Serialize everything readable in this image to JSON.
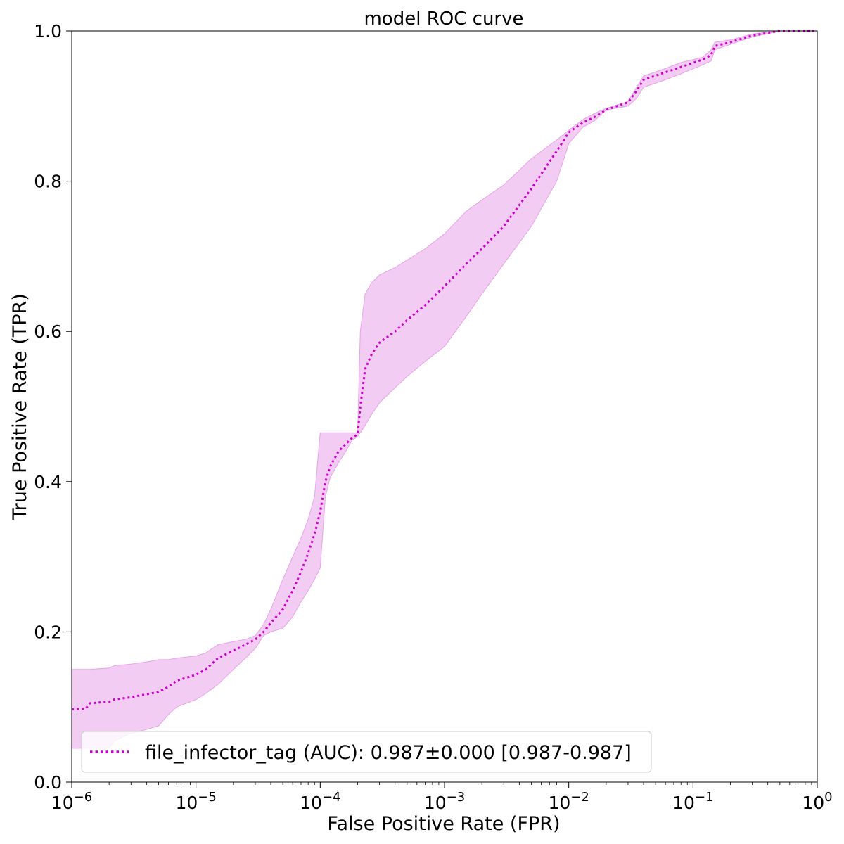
{
  "chart_data": {
    "type": "line",
    "title": "model ROC curve",
    "xlabel": "False Positive Rate (FPR)",
    "ylabel": "True Positive Rate (TPR)",
    "xscale": "log",
    "xlim": [
      1e-06,
      1
    ],
    "ylim": [
      0.0,
      1.0
    ],
    "grid": false,
    "legend_placement": "lower-left",
    "x_ticks": [
      {
        "value": 1e-06,
        "base": "10",
        "exp": "−6"
      },
      {
        "value": 1e-05,
        "base": "10",
        "exp": "−5"
      },
      {
        "value": 0.0001,
        "base": "10",
        "exp": "−4"
      },
      {
        "value": 0.001,
        "base": "10",
        "exp": "−3"
      },
      {
        "value": 0.01,
        "base": "10",
        "exp": "−2"
      },
      {
        "value": 0.1,
        "base": "10",
        "exp": "−1"
      },
      {
        "value": 1,
        "base": "10",
        "exp": "0"
      }
    ],
    "y_ticks": [
      {
        "value": 0.0,
        "label": "0.0"
      },
      {
        "value": 0.2,
        "label": "0.2"
      },
      {
        "value": 0.4,
        "label": "0.4"
      },
      {
        "value": 0.6,
        "label": "0.6"
      },
      {
        "value": 0.8,
        "label": "0.8"
      },
      {
        "value": 1.0,
        "label": "1.0"
      }
    ],
    "series": [
      {
        "name": "file_infector_tag (AUC): 0.987±0.000 [0.987-0.987]",
        "color": "#cc00cc",
        "band_color": "#e7a3e7",
        "line_style": "dotted",
        "x": [
          1e-06,
          1.3e-06,
          1.4e-06,
          2e-06,
          2.2e-06,
          3e-06,
          4e-06,
          5e-06,
          6e-06,
          7e-06,
          1e-05,
          1.2e-05,
          1.5e-05,
          2e-05,
          2.5e-05,
          3e-05,
          3.5e-05,
          4e-05,
          5e-05,
          6e-05,
          7e-05,
          8e-05,
          9e-05,
          0.0001,
          0.00011,
          0.00012,
          0.00014,
          0.00016,
          0.00018,
          0.0002,
          0.00021,
          0.00023,
          0.00026,
          0.0003,
          0.0004,
          0.0005,
          0.0007,
          0.001,
          0.0015,
          0.002,
          0.003,
          0.005,
          0.008,
          0.01,
          0.013,
          0.016,
          0.02,
          0.03,
          0.035,
          0.04,
          0.06,
          0.08,
          0.12,
          0.14,
          0.15,
          0.2,
          0.3,
          0.5,
          1
        ],
        "y": [
          0.097,
          0.098,
          0.105,
          0.107,
          0.11,
          0.113,
          0.117,
          0.12,
          0.127,
          0.135,
          0.143,
          0.15,
          0.165,
          0.175,
          0.183,
          0.19,
          0.2,
          0.212,
          0.23,
          0.255,
          0.28,
          0.305,
          0.33,
          0.36,
          0.4,
          0.42,
          0.44,
          0.45,
          0.458,
          0.463,
          0.5,
          0.55,
          0.57,
          0.585,
          0.6,
          0.615,
          0.635,
          0.66,
          0.69,
          0.71,
          0.74,
          0.79,
          0.84,
          0.865,
          0.878,
          0.885,
          0.895,
          0.905,
          0.92,
          0.935,
          0.945,
          0.952,
          0.962,
          0.968,
          0.98,
          0.985,
          0.994,
          1.0,
          1.0
        ],
        "y_lower": [
          0.045,
          0.045,
          0.045,
          0.045,
          0.055,
          0.065,
          0.07,
          0.075,
          0.09,
          0.1,
          0.11,
          0.118,
          0.13,
          0.15,
          0.165,
          0.178,
          0.195,
          0.2,
          0.205,
          0.22,
          0.24,
          0.255,
          0.27,
          0.285,
          0.38,
          0.405,
          0.425,
          0.44,
          0.455,
          0.46,
          0.465,
          0.475,
          0.49,
          0.505,
          0.525,
          0.54,
          0.56,
          0.58,
          0.62,
          0.65,
          0.69,
          0.74,
          0.8,
          0.85,
          0.872,
          0.88,
          0.895,
          0.9,
          0.91,
          0.925,
          0.935,
          0.943,
          0.955,
          0.96,
          0.975,
          0.982,
          0.992,
          1.0,
          1.0
        ],
        "y_upper": [
          0.15,
          0.15,
          0.15,
          0.152,
          0.155,
          0.157,
          0.16,
          0.163,
          0.163,
          0.165,
          0.168,
          0.172,
          0.183,
          0.187,
          0.19,
          0.195,
          0.21,
          0.23,
          0.27,
          0.3,
          0.325,
          0.35,
          0.38,
          0.465,
          0.465,
          0.465,
          0.465,
          0.465,
          0.465,
          0.465,
          0.6,
          0.65,
          0.665,
          0.675,
          0.685,
          0.695,
          0.71,
          0.73,
          0.76,
          0.775,
          0.795,
          0.83,
          0.855,
          0.868,
          0.882,
          0.89,
          0.897,
          0.906,
          0.925,
          0.94,
          0.95,
          0.958,
          0.965,
          0.975,
          0.985,
          0.988,
          0.996,
          1.0,
          1.0
        ]
      }
    ]
  }
}
